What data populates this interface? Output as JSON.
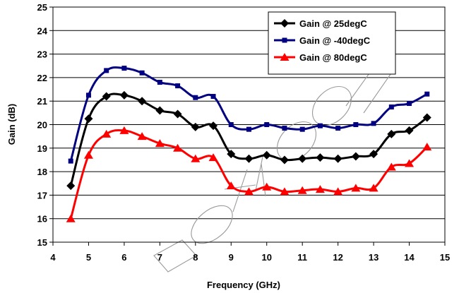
{
  "chart_data": {
    "type": "line",
    "title": "",
    "xlabel": "Frequency (GHz)",
    "ylabel": "Gain (dB)",
    "xlim": [
      4,
      15
    ],
    "ylim": [
      15,
      25
    ],
    "xticks": [
      "4",
      "5",
      "6",
      "7",
      "8",
      "9",
      "10",
      "11",
      "12",
      "13",
      "14",
      "15"
    ],
    "yticks": [
      "15",
      "16",
      "17",
      "18",
      "19",
      "20",
      "21",
      "22",
      "23",
      "24",
      "25"
    ],
    "grid": "horizontal",
    "legend_position": "top-right",
    "x": [
      4.5,
      5,
      5.5,
      6,
      6.5,
      7,
      7.5,
      8,
      8.5,
      9,
      9.5,
      10,
      10.5,
      11,
      11.5,
      12,
      12.5,
      13,
      13.5,
      14,
      14.5
    ],
    "series": [
      {
        "name": "Gain @ 25degC",
        "color": "#000000",
        "marker": "diamond",
        "values": [
          17.4,
          20.25,
          21.2,
          21.25,
          21.0,
          20.6,
          20.45,
          19.9,
          19.95,
          18.75,
          18.55,
          18.7,
          18.5,
          18.55,
          18.6,
          18.55,
          18.65,
          18.75,
          19.6,
          19.75,
          20.3
        ]
      },
      {
        "name": "Gain @ -40degC",
        "color": "#000080",
        "marker": "square",
        "values": [
          18.45,
          21.25,
          22.3,
          22.4,
          22.2,
          21.8,
          21.65,
          21.15,
          21.2,
          20.0,
          19.8,
          20.0,
          19.85,
          19.8,
          19.95,
          19.85,
          20.0,
          20.05,
          20.75,
          20.9,
          21.3
        ]
      },
      {
        "name": "Gain @ 80degC",
        "color": "#ff0000",
        "marker": "triangle",
        "values": [
          16.0,
          18.7,
          19.6,
          19.75,
          19.5,
          19.2,
          19.0,
          18.55,
          18.6,
          17.4,
          17.15,
          17.35,
          17.15,
          17.2,
          17.25,
          17.15,
          17.3,
          17.3,
          18.2,
          18.35,
          19.05
        ]
      }
    ]
  }
}
